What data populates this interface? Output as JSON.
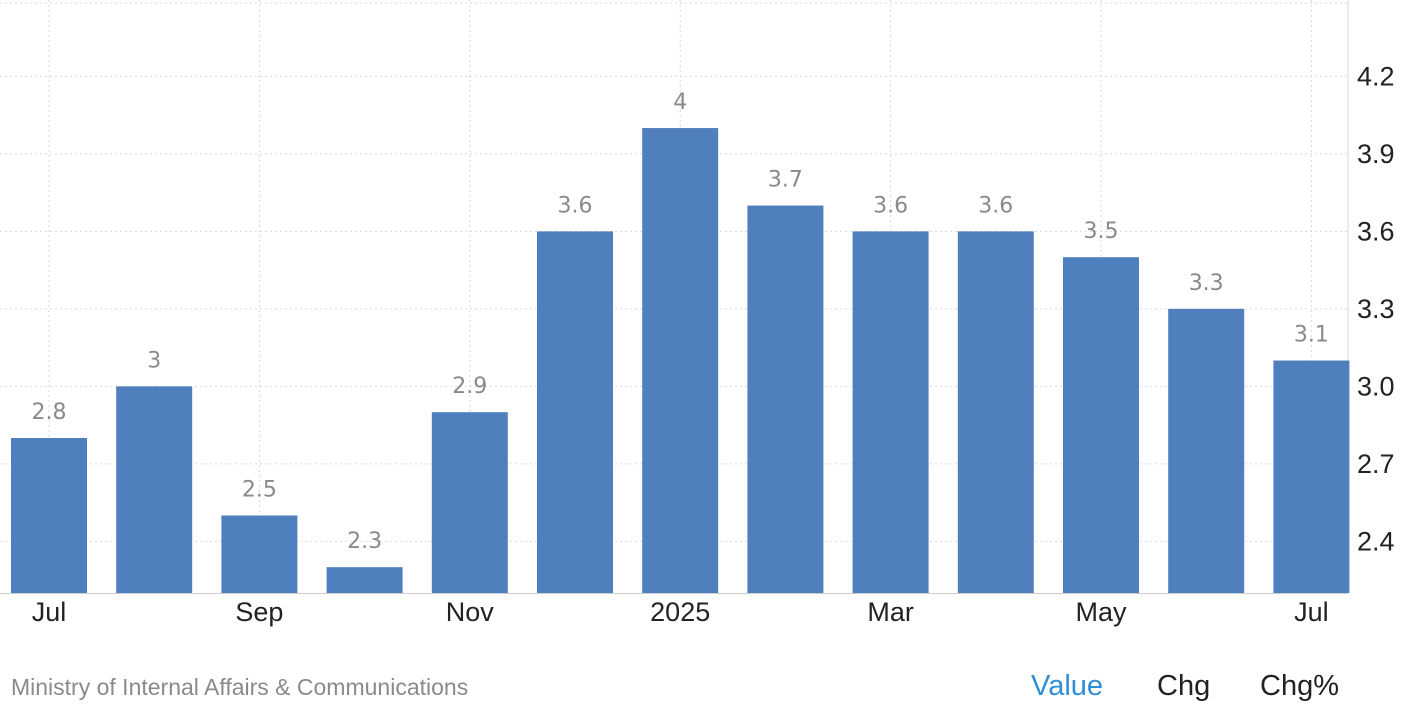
{
  "chart_data": {
    "type": "bar",
    "title": "",
    "xlabel": "",
    "ylabel": "",
    "series": [
      {
        "values": [
          2.8,
          3.0,
          2.5,
          2.3,
          2.9,
          3.6,
          4.0,
          3.7,
          3.6,
          3.6,
          3.5,
          3.3,
          3.1
        ],
        "data_labels": [
          "2.8",
          "3",
          "2.5",
          "2.3",
          "2.9",
          "3.6",
          "4",
          "3.7",
          "3.6",
          "3.6",
          "3.5",
          "3.3",
          "3.1"
        ],
        "color": "#4f7fbd"
      }
    ],
    "x_ticks": [
      {
        "index": 0,
        "label": "Jul"
      },
      {
        "index": 2,
        "label": "Sep"
      },
      {
        "index": 4,
        "label": "Nov"
      },
      {
        "index": 6,
        "label": "2025"
      },
      {
        "index": 8,
        "label": "Mar"
      },
      {
        "index": 10,
        "label": "May"
      },
      {
        "index": 12,
        "label": "Jul"
      }
    ],
    "y_ticks": [
      "2.4",
      "2.7",
      "3.0",
      "3.3",
      "3.6",
      "3.9",
      "4.2"
    ],
    "ylim": [
      2.2,
      4.5
    ],
    "y_axis_position": "right",
    "grid": true,
    "legend": "none"
  },
  "footer": {
    "source": "Ministry of Internal Affairs & Communications",
    "tabs": [
      {
        "label": "Value",
        "active": true
      },
      {
        "label": "Chg",
        "active": false
      },
      {
        "label": "Chg%",
        "active": false
      }
    ]
  },
  "colors": {
    "bar": "#4f7fbd",
    "active_tab": "#2e8fd8",
    "grid": "#d9d9d9",
    "data_label": "#8a8a8a"
  }
}
